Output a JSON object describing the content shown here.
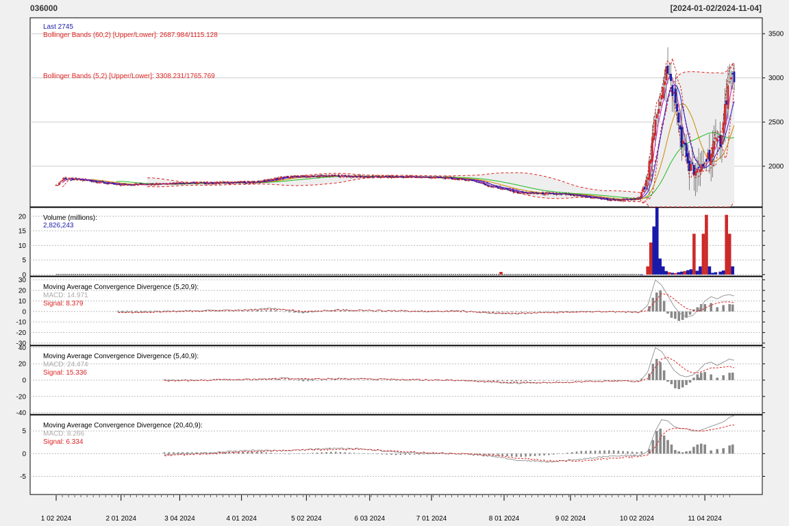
{
  "header": {
    "symbol": "036000",
    "range": "[2024-01-02/2024-11-04]"
  },
  "colors": {
    "up": "#cc2a2a",
    "down": "#1a1aaa",
    "bb": "#dd2222",
    "ma_blue": "#2222dd",
    "ma_green": "#22bb22",
    "ma_orange": "#cc8800",
    "ma_magenta": "#cc22cc",
    "macd_line": "#999999",
    "signal": "#dd2222",
    "hist": "#888888"
  },
  "chart_data": [
    {
      "type": "candlestick",
      "name": "price",
      "legend": [
        {
          "text": "Last 2745",
          "color": "#1a1aaa"
        },
        {
          "text": "Bollinger Bands (60,2) [Upper/Lower]: 2687.984/1115.128",
          "color": "#dd2222"
        },
        {
          "text": "Bollinger Bands (5,2) [Upper/Lower]: 3308.231/1765.769",
          "color": "#dd2222"
        }
      ],
      "y_ticks": [
        2000,
        2500,
        3000,
        3500
      ],
      "ylim": [
        1540,
        3680
      ],
      "grid": true,
      "close_anchors": [
        [
          0,
          1780
        ],
        [
          5,
          1860
        ],
        [
          20,
          1840
        ],
        [
          40,
          1790
        ],
        [
          60,
          1800
        ],
        [
          80,
          1810
        ],
        [
          100,
          1810
        ],
        [
          130,
          1820
        ],
        [
          150,
          1880
        ],
        [
          180,
          1890
        ],
        [
          200,
          1880
        ],
        [
          230,
          1880
        ],
        [
          250,
          1870
        ],
        [
          270,
          1840
        ],
        [
          280,
          1780
        ],
        [
          285,
          1760
        ],
        [
          295,
          1720
        ],
        [
          300,
          1700
        ],
        [
          330,
          1680
        ],
        [
          350,
          1640
        ],
        [
          358,
          1620
        ],
        [
          370,
          1620
        ],
        [
          378,
          1640
        ],
        [
          384,
          2000
        ],
        [
          390,
          2700
        ],
        [
          395,
          3100
        ],
        [
          400,
          2800
        ],
        [
          405,
          2300
        ],
        [
          410,
          2000
        ],
        [
          415,
          1900
        ],
        [
          425,
          2200
        ],
        [
          430,
          2300
        ],
        [
          435,
          2900
        ],
        [
          438,
          3000
        ]
      ]
    },
    {
      "type": "bar",
      "name": "volume",
      "title": "Volume (millions):",
      "subtitle": "2,826,243",
      "y_ticks": [
        0,
        5,
        10,
        15,
        20
      ],
      "ylim": [
        -0.5,
        23
      ],
      "bars": [
        [
          288,
          0.9
        ],
        [
          379,
          0.1
        ],
        [
          383,
          2.8
        ],
        [
          385,
          11
        ],
        [
          387,
          16.5
        ],
        [
          389,
          23
        ],
        [
          391,
          5.5
        ],
        [
          393,
          2.8
        ],
        [
          395,
          1.2
        ],
        [
          397,
          0.8
        ],
        [
          399,
          0.6
        ],
        [
          401,
          0.5
        ],
        [
          403,
          0.8
        ],
        [
          405,
          1.0
        ],
        [
          407,
          1.2
        ],
        [
          409,
          1.5
        ],
        [
          411,
          1.8
        ],
        [
          413,
          14
        ],
        [
          415,
          1.3
        ],
        [
          417,
          2.8
        ],
        [
          419,
          14
        ],
        [
          421,
          20.5
        ],
        [
          423,
          2.8
        ],
        [
          425,
          0.6
        ],
        [
          427,
          0.8
        ],
        [
          430,
          1.0
        ],
        [
          432,
          1.4
        ],
        [
          434,
          20.5
        ],
        [
          436,
          14
        ],
        [
          438,
          2.8
        ]
      ],
      "bar_colors": {
        "up_idx": [
          288,
          383,
          385,
          397,
          401,
          407,
          413,
          419,
          421,
          434,
          436
        ],
        "down_idx": [
          379,
          387,
          389,
          391,
          393,
          395,
          399,
          403,
          405,
          409,
          411,
          415,
          417,
          423,
          425,
          427,
          430,
          432,
          438
        ]
      }
    },
    {
      "type": "macd",
      "title": "Moving Average Convergence Divergence (5,20,9):",
      "macd_label": "MACD: 14.971",
      "signal_label": "Signal: 8.379",
      "y_ticks": [
        30,
        20,
        10,
        0,
        -10,
        -20,
        -30
      ],
      "ylim": [
        -32,
        33
      ],
      "start": 40,
      "macd": [
        [
          40,
          -1
        ],
        [
          80,
          0.5
        ],
        [
          120,
          1.2
        ],
        [
          140,
          3
        ],
        [
          150,
          1
        ],
        [
          160,
          -1
        ],
        [
          180,
          1.5
        ],
        [
          200,
          1
        ],
        [
          220,
          0.5
        ],
        [
          240,
          -0.5
        ],
        [
          260,
          0.8
        ],
        [
          280,
          -1.5
        ],
        [
          300,
          -2
        ],
        [
          320,
          -1
        ],
        [
          340,
          0
        ],
        [
          360,
          -0.5
        ],
        [
          378,
          -0.8
        ],
        [
          383,
          6
        ],
        [
          388,
          30
        ],
        [
          392,
          25
        ],
        [
          396,
          15
        ],
        [
          400,
          5
        ],
        [
          404,
          -2
        ],
        [
          408,
          -5
        ],
        [
          412,
          -4
        ],
        [
          416,
          2
        ],
        [
          420,
          10
        ],
        [
          424,
          14
        ],
        [
          428,
          12
        ],
        [
          432,
          15
        ],
        [
          436,
          16
        ],
        [
          438,
          15
        ]
      ],
      "signal": [
        [
          40,
          -1.5
        ],
        [
          80,
          0
        ],
        [
          120,
          1
        ],
        [
          140,
          2
        ],
        [
          150,
          1.5
        ],
        [
          160,
          0
        ],
        [
          180,
          1
        ],
        [
          200,
          1
        ],
        [
          220,
          0.5
        ],
        [
          240,
          0
        ],
        [
          260,
          0.3
        ],
        [
          280,
          -1
        ],
        [
          300,
          -1.6
        ],
        [
          320,
          -1.2
        ],
        [
          340,
          -0.3
        ],
        [
          360,
          -0.4
        ],
        [
          378,
          -0.6
        ],
        [
          383,
          1
        ],
        [
          388,
          10
        ],
        [
          392,
          17
        ],
        [
          396,
          16
        ],
        [
          400,
          12
        ],
        [
          404,
          7
        ],
        [
          408,
          3
        ],
        [
          412,
          1
        ],
        [
          416,
          0
        ],
        [
          420,
          3
        ],
        [
          424,
          6
        ],
        [
          428,
          8
        ],
        [
          432,
          9
        ],
        [
          436,
          9
        ],
        [
          438,
          8.4
        ]
      ],
      "hist": [
        [
          384,
          5
        ],
        [
          386,
          13
        ],
        [
          388,
          18
        ],
        [
          390,
          20
        ],
        [
          392,
          10
        ],
        [
          394,
          -2
        ],
        [
          396,
          -6
        ],
        [
          398,
          -7
        ],
        [
          400,
          -9
        ],
        [
          402,
          -8
        ],
        [
          404,
          -6
        ],
        [
          406,
          -3
        ],
        [
          408,
          2
        ],
        [
          410,
          4
        ],
        [
          412,
          7
        ],
        [
          414,
          6
        ]
      ]
    },
    {
      "type": "macd",
      "title": "Moving Average Convergence Divergence (5,40,9):",
      "macd_label": "MACD: 24.474",
      "signal_label": "Signal: 15.336",
      "y_ticks": [
        40,
        20,
        0,
        -20,
        -40
      ],
      "ylim": [
        -42,
        42
      ],
      "start": 70,
      "macd": [
        [
          70,
          -0.5
        ],
        [
          100,
          0.2
        ],
        [
          130,
          1
        ],
        [
          150,
          2.5
        ],
        [
          160,
          0.5
        ],
        [
          180,
          2
        ],
        [
          200,
          1.5
        ],
        [
          220,
          0.8
        ],
        [
          240,
          0.2
        ],
        [
          260,
          0
        ],
        [
          280,
          -2
        ],
        [
          300,
          -4
        ],
        [
          320,
          -3
        ],
        [
          340,
          -2
        ],
        [
          360,
          -1
        ],
        [
          378,
          -1.5
        ],
        [
          383,
          10
        ],
        [
          388,
          40
        ],
        [
          392,
          35
        ],
        [
          396,
          24
        ],
        [
          400,
          12
        ],
        [
          404,
          6
        ],
        [
          408,
          4
        ],
        [
          412,
          6
        ],
        [
          416,
          12
        ],
        [
          420,
          20
        ],
        [
          424,
          22
        ],
        [
          428,
          18
        ],
        [
          432,
          22
        ],
        [
          436,
          26
        ],
        [
          438,
          24.5
        ]
      ],
      "signal": [
        [
          70,
          -1
        ],
        [
          100,
          0
        ],
        [
          130,
          0.8
        ],
        [
          150,
          1.8
        ],
        [
          160,
          1.5
        ],
        [
          180,
          1.5
        ],
        [
          200,
          1.4
        ],
        [
          220,
          0.8
        ],
        [
          240,
          0.3
        ],
        [
          260,
          0
        ],
        [
          280,
          -1.5
        ],
        [
          300,
          -3
        ],
        [
          320,
          -3
        ],
        [
          340,
          -2
        ],
        [
          360,
          -1.2
        ],
        [
          378,
          -1.2
        ],
        [
          383,
          2
        ],
        [
          388,
          16
        ],
        [
          392,
          26
        ],
        [
          396,
          28
        ],
        [
          400,
          24
        ],
        [
          404,
          18
        ],
        [
          408,
          12
        ],
        [
          412,
          9
        ],
        [
          416,
          9
        ],
        [
          420,
          12
        ],
        [
          424,
          15
        ],
        [
          428,
          15
        ],
        [
          432,
          16
        ],
        [
          436,
          17
        ],
        [
          438,
          15.3
        ]
      ],
      "hist": [
        [
          384,
          8
        ],
        [
          386,
          20
        ],
        [
          388,
          26
        ],
        [
          390,
          22
        ],
        [
          392,
          12
        ],
        [
          394,
          -2
        ],
        [
          396,
          -5
        ],
        [
          398,
          -10
        ],
        [
          400,
          -11
        ],
        [
          402,
          -9
        ],
        [
          404,
          -6
        ],
        [
          406,
          -3
        ],
        [
          408,
          3
        ],
        [
          410,
          7
        ],
        [
          412,
          9
        ],
        [
          414,
          10
        ]
      ]
    },
    {
      "type": "macd",
      "title": "Moving Average Convergence Divergence (20,40,9):",
      "macd_label": "MACD: 8.266",
      "signal_label": "Signal: 6.334",
      "y_ticks": [
        5,
        0,
        -5
      ],
      "ylim": [
        -9,
        8.5
      ],
      "start": 70,
      "macd": [
        [
          70,
          -0.2
        ],
        [
          100,
          0.2
        ],
        [
          130,
          0.8
        ],
        [
          150,
          0.6
        ],
        [
          180,
          1.2
        ],
        [
          200,
          1
        ],
        [
          220,
          0.3
        ],
        [
          240,
          0.1
        ],
        [
          260,
          0
        ],
        [
          280,
          -0.5
        ],
        [
          300,
          -1.5
        ],
        [
          320,
          -1.8
        ],
        [
          340,
          -1.2
        ],
        [
          360,
          -0.5
        ],
        [
          378,
          -0.4
        ],
        [
          383,
          0.5
        ],
        [
          388,
          5
        ],
        [
          392,
          7.5
        ],
        [
          396,
          7.2
        ],
        [
          400,
          6
        ],
        [
          404,
          5.5
        ],
        [
          408,
          5.5
        ],
        [
          412,
          5
        ],
        [
          416,
          5
        ],
        [
          420,
          5.5
        ],
        [
          424,
          6
        ],
        [
          428,
          6.5
        ],
        [
          432,
          7
        ],
        [
          436,
          8
        ],
        [
          438,
          8.3
        ]
      ],
      "signal": [
        [
          70,
          -0.4
        ],
        [
          100,
          0
        ],
        [
          130,
          0.5
        ],
        [
          150,
          0.7
        ],
        [
          180,
          0.9
        ],
        [
          200,
          1
        ],
        [
          220,
          0.5
        ],
        [
          240,
          0.2
        ],
        [
          260,
          0
        ],
        [
          280,
          -0.3
        ],
        [
          300,
          -1
        ],
        [
          320,
          -1.6
        ],
        [
          340,
          -1.6
        ],
        [
          360,
          -1
        ],
        [
          378,
          -0.6
        ],
        [
          383,
          -0.3
        ],
        [
          388,
          1.5
        ],
        [
          392,
          4
        ],
        [
          396,
          5.2
        ],
        [
          400,
          5.6
        ],
        [
          404,
          5.6
        ],
        [
          408,
          5.5
        ],
        [
          412,
          5.2
        ],
        [
          416,
          5
        ],
        [
          420,
          5
        ],
        [
          424,
          5.3
        ],
        [
          428,
          5.5
        ],
        [
          432,
          5.8
        ],
        [
          436,
          6.2
        ],
        [
          438,
          6.3
        ]
      ],
      "hist": [
        [
          384,
          1
        ],
        [
          386,
          3
        ],
        [
          388,
          5
        ],
        [
          390,
          5.5
        ],
        [
          392,
          4
        ],
        [
          394,
          3
        ],
        [
          396,
          2
        ],
        [
          398,
          0.8
        ],
        [
          400,
          0.5
        ],
        [
          402,
          0.3
        ],
        [
          404,
          0.5
        ],
        [
          406,
          0.6
        ],
        [
          408,
          1.5
        ],
        [
          410,
          2
        ],
        [
          412,
          2.2
        ],
        [
          414,
          2
        ]
      ]
    }
  ],
  "x_axis": {
    "n": 440,
    "labels": [
      {
        "text": "1 02 2024",
        "i": 0
      },
      {
        "text": "2 01 2024",
        "i": 42
      },
      {
        "text": "3 04 2024",
        "i": 80
      },
      {
        "text": "4 01 2024",
        "i": 120
      },
      {
        "text": "5 02 2024",
        "i": 162
      },
      {
        "text": "6 03 2024",
        "i": 203
      },
      {
        "text": "7 01 2024",
        "i": 243
      },
      {
        "text": "8 01 2024",
        "i": 290
      },
      {
        "text": "9 02 2024",
        "i": 333
      },
      {
        "text": "10 02 2024",
        "i": 376
      },
      {
        "text": "11 04 2024",
        "i": 420
      }
    ]
  }
}
